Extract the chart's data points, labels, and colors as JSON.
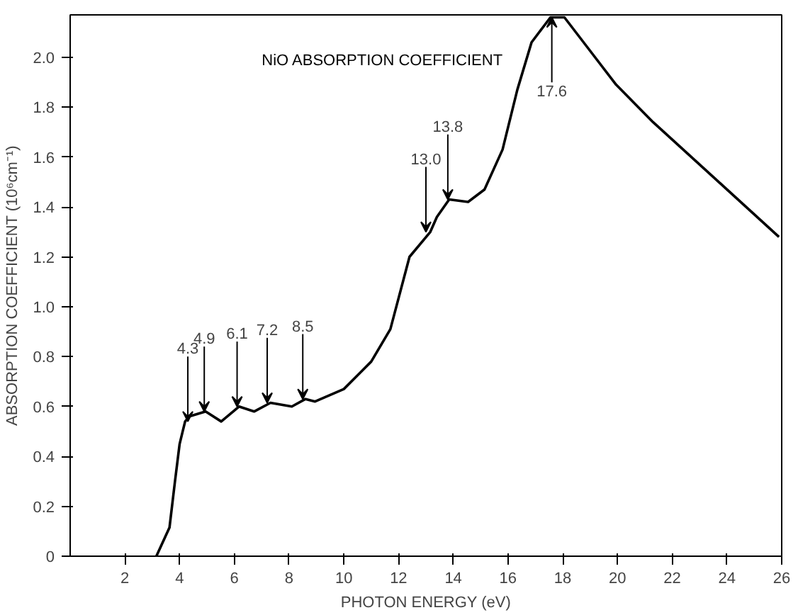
{
  "chart_data": {
    "type": "line",
    "title": "NiO ABSORPTION COEFFICIENT",
    "xlabel": "PHOTON ENERGY (eV)",
    "ylabel": "ABSORPTION COEFFICIENT (10⁶cm⁻¹)",
    "series": [
      {
        "color": "#000000",
        "x": [
          3.15,
          3.63,
          3.83,
          4.0,
          4.2,
          4.35,
          4.95,
          5.52,
          6.17,
          6.72,
          7.32,
          8.1,
          8.6,
          8.95,
          10.0,
          11.0,
          11.7,
          12.4,
          13.16,
          13.4,
          13.85,
          14.54,
          15.14,
          15.8,
          16.34,
          16.86,
          17.55,
          18.06,
          18.9,
          19.95,
          21.3,
          23.7,
          25.9
        ],
        "values": [
          0,
          0.115,
          0.3,
          0.45,
          0.54,
          0.56,
          0.58,
          0.54,
          0.6,
          0.58,
          0.615,
          0.6,
          0.63,
          0.62,
          0.67,
          0.78,
          0.91,
          1.2,
          1.3,
          1.36,
          1.43,
          1.42,
          1.47,
          1.63,
          1.87,
          2.06,
          2.16,
          2.16,
          2.04,
          1.89,
          1.74,
          1.5,
          1.28
        ]
      }
    ],
    "annotations": [
      {
        "text": "4.3",
        "x": 4.3,
        "y": 0.54
      },
      {
        "text": "4.9",
        "x": 4.9,
        "y": 0.58
      },
      {
        "text": "6.1",
        "x": 6.1,
        "y": 0.6
      },
      {
        "text": "7.2",
        "x": 7.2,
        "y": 0.615
      },
      {
        "text": "8.5",
        "x": 8.5,
        "y": 0.63
      },
      {
        "text": "13.0",
        "x": 13.0,
        "y": 1.3
      },
      {
        "text": "13.8",
        "x": 13.8,
        "y": 1.43
      },
      {
        "text": "17.6",
        "x": 17.6,
        "y": 2.16
      }
    ],
    "xlim": [
      0,
      26
    ],
    "ylim": [
      0,
      2.17
    ],
    "xticks": [
      2,
      4,
      6,
      8,
      10,
      12,
      14,
      16,
      18,
      20,
      22,
      24,
      26
    ],
    "yticks": [
      0,
      {
        "value": 0.2,
        "label": "0.2"
      },
      {
        "value": 0.4,
        "label": "0.4"
      },
      {
        "value": 0.6,
        "label": "0.6"
      },
      {
        "value": 0.8,
        "label": "0.8"
      },
      {
        "value": 1.0,
        "label": "1.0"
      },
      {
        "value": 1.2,
        "label": "1.2"
      },
      {
        "value": 1.4,
        "label": "1.4"
      },
      {
        "value": 1.6,
        "label": "1.6"
      },
      {
        "value": 1.8,
        "label": "1.8"
      },
      {
        "value": 2.0,
        "label": "2.0"
      }
    ],
    "grid": false,
    "line_style": "solid"
  }
}
